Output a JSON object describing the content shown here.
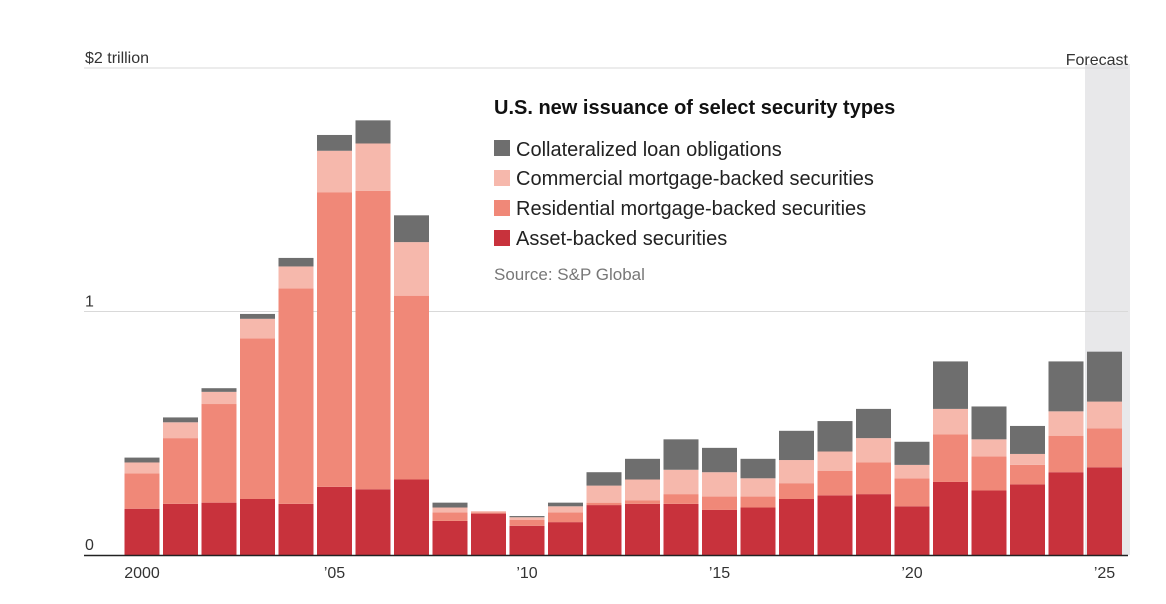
{
  "chart_data": {
    "type": "bar",
    "stacked": true,
    "title": "U.S. new issuance of select security types",
    "source": "Source: S&P Global",
    "forecast_label": "Forecast",
    "ylim": [
      0,
      2
    ],
    "yticks": [
      {
        "value": 0,
        "label": "0"
      },
      {
        "value": 1,
        "label": "1"
      },
      {
        "value": 2,
        "label": "$2 trillion"
      }
    ],
    "xtick_labels": [
      {
        "year": 2000,
        "label": "2000"
      },
      {
        "year": 2005,
        "label": "’05"
      },
      {
        "year": 2010,
        "label": "’10"
      },
      {
        "year": 2015,
        "label": "’15"
      },
      {
        "year": 2020,
        "label": "’20"
      },
      {
        "year": 2025,
        "label": "’25"
      }
    ],
    "categories": [
      2000,
      2001,
      2002,
      2003,
      2004,
      2005,
      2006,
      2007,
      2008,
      2009,
      2010,
      2011,
      2012,
      2013,
      2014,
      2015,
      2016,
      2017,
      2018,
      2019,
      2020,
      2021,
      2022,
      2023,
      2024,
      2025
    ],
    "forecast_categories": [
      2025
    ],
    "grid": true,
    "series": [
      {
        "name": "Asset-backed securities",
        "color": "#c8323c",
        "values": [
          0.19,
          0.21,
          0.215,
          0.23,
          0.21,
          0.28,
          0.27,
          0.31,
          0.14,
          0.17,
          0.12,
          0.135,
          0.205,
          0.21,
          0.21,
          0.185,
          0.195,
          0.23,
          0.245,
          0.25,
          0.2,
          0.3,
          0.265,
          0.29,
          0.34,
          0.36
        ]
      },
      {
        "name": "Residential mortgage-backed securities",
        "color": "#f08878",
        "values": [
          0.145,
          0.27,
          0.405,
          0.66,
          0.885,
          1.21,
          1.225,
          0.755,
          0.035,
          0.005,
          0.025,
          0.04,
          0.01,
          0.015,
          0.04,
          0.055,
          0.045,
          0.065,
          0.1,
          0.13,
          0.115,
          0.195,
          0.14,
          0.08,
          0.15,
          0.16
        ]
      },
      {
        "name": "Commercial mortgage-backed securities",
        "color": "#f6b8ac",
        "values": [
          0.045,
          0.065,
          0.05,
          0.08,
          0.09,
          0.17,
          0.195,
          0.22,
          0.02,
          0.005,
          0.01,
          0.025,
          0.07,
          0.085,
          0.1,
          0.1,
          0.075,
          0.095,
          0.08,
          0.1,
          0.055,
          0.105,
          0.07,
          0.045,
          0.1,
          0.11
        ]
      },
      {
        "name": "Collateralized loan obligations",
        "color": "#6e6e6e",
        "values": [
          0.02,
          0.02,
          0.015,
          0.02,
          0.035,
          0.065,
          0.095,
          0.11,
          0.02,
          0.0,
          0.005,
          0.015,
          0.055,
          0.085,
          0.125,
          0.1,
          0.08,
          0.12,
          0.125,
          0.12,
          0.095,
          0.195,
          0.135,
          0.115,
          0.205,
          0.205
        ]
      }
    ]
  }
}
